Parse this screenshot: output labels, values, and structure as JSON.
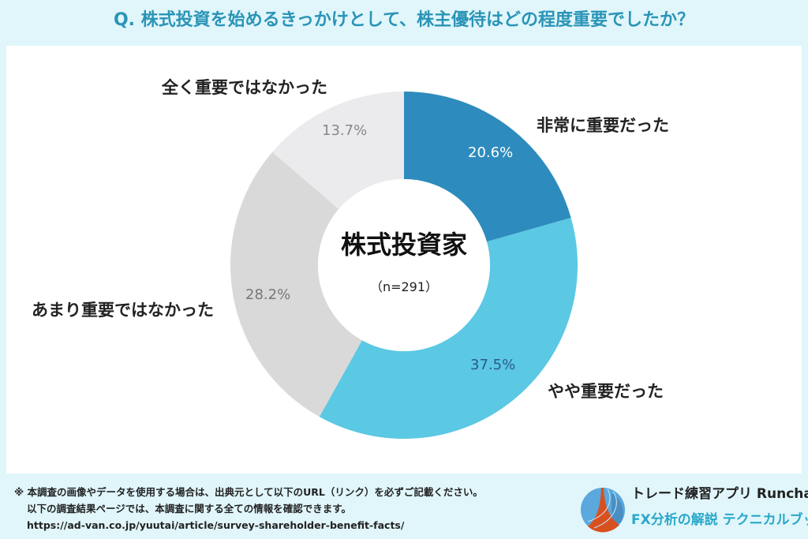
{
  "title": "Q. 株式投資を始めるきっかけとして、株主優待はどの程度重要でしたか？",
  "chart_data": {
    "type": "pie",
    "variant": "donut",
    "center_label": "株式投資家",
    "center_sublabel": "（n=291）",
    "slices": [
      {
        "label": "非常に重要だった",
        "value": 20.6,
        "display": "20.6%",
        "color": "#2e8bbd",
        "text_color": "#ffffff"
      },
      {
        "label": "やや重要だった",
        "value": 37.5,
        "display": "37.5%",
        "color": "#5bc8e4",
        "text_color": "#2a5a8a"
      },
      {
        "label": "あまり重要ではなかった",
        "value": 28.2,
        "display": "28.2%",
        "color": "#d9d9d9",
        "text_color": "#777777"
      },
      {
        "label": "全く重要ではなかった",
        "value": 13.7,
        "display": "13.7%",
        "color": "#ebebed",
        "text_color": "#888888"
      }
    ]
  },
  "footer": {
    "note1": "※ 本調査の画像やデータを使用する場合は、出典元として以下のURL（リンク）を必ずご記載ください。",
    "note2": "以下の調査結果ページでは、本調査に関する全ての情報を確認できます。",
    "url": "https://ad-van.co.jp/yuutai/article/survey-shareholder-benefit-facts/",
    "brand1": "トレード練習アプリ  Runcha",
    "brand2": "FX分析の解説  テクニカルブック"
  }
}
